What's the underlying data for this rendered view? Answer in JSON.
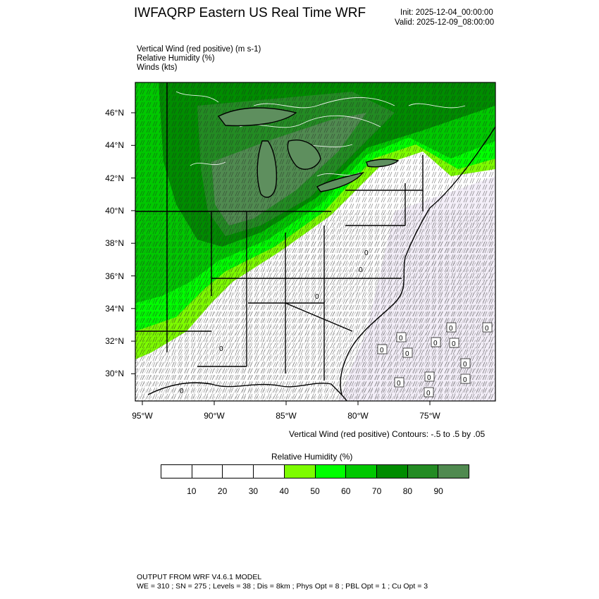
{
  "header": {
    "title": "IWFAQRP Eastern US Real Time WRF",
    "init": "Init: 2025-12-04_00:00:00",
    "valid": "Valid: 2025-12-09_08:00:00"
  },
  "fields": [
    "Vertical Wind (red positive)   (m s-1)",
    "Relative Humidity   (%)",
    "Winds   (kts)"
  ],
  "map": {
    "lat_labels": [
      "46°N",
      "44°N",
      "42°N",
      "40°N",
      "38°N",
      "36°N",
      "34°N",
      "32°N",
      "30°N"
    ],
    "lat_values": [
      46,
      44,
      42,
      40,
      38,
      36,
      34,
      32,
      30
    ],
    "lon_labels": [
      "95°W",
      "90°W",
      "85°W",
      "80°W",
      "75°W"
    ],
    "lon_values": [
      -95,
      -90,
      -85,
      -80,
      -75
    ],
    "contour_zero_label": "0",
    "colors": {
      "rh_40": "#7dfc00",
      "rh_50": "#00ff00",
      "rh_60": "#00c800",
      "rh_70": "#008c00",
      "rh_80": "#238b23",
      "rh_90": "#508a50",
      "barb": "#1a1a1a",
      "contour": "#ffffff",
      "state_line": "#000000"
    }
  },
  "contour_text": "Vertical Wind (red positive) Contours: -.5 to .5 by .05",
  "colorbar": {
    "title": "Relative Humidity  (%)",
    "labels": [
      "10",
      "20",
      "30",
      "40",
      "50",
      "60",
      "70",
      "80",
      "90"
    ],
    "colors": [
      "#ffffff",
      "#ffffff",
      "#ffffff",
      "#ffffff",
      "#7dfc00",
      "#00ff00",
      "#00c800",
      "#008c00",
      "#238b23",
      "#508a50"
    ]
  },
  "footer": {
    "line1": "OUTPUT FROM WRF V4.6.1 MODEL",
    "line2": "WE = 310 ; SN = 275 ; Levels = 38 ; Dis = 8km ; Phys Opt = 8 ; PBL Opt = 1 ; Cu Opt = 3"
  }
}
